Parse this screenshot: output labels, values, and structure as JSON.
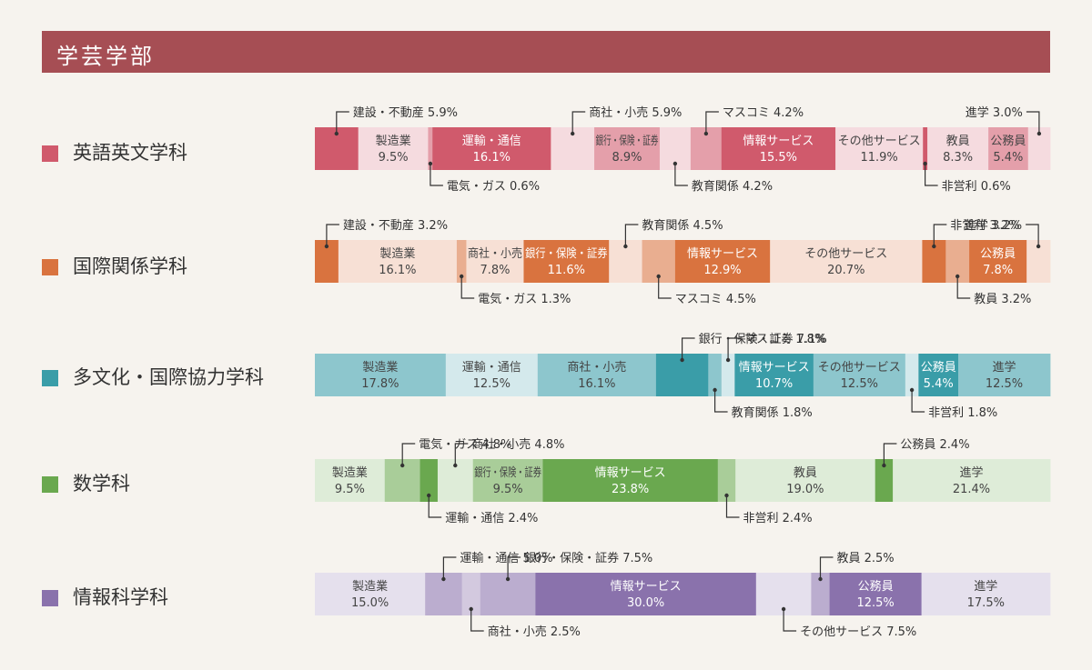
{
  "page_title": "学芸学部",
  "chart_data": [
    {
      "type": "bar",
      "dept": "英語英文学科",
      "color": "#d05a6c",
      "segments": [
        {
          "name": "建設・不動産",
          "value": 5.9,
          "shade": 0,
          "label": "out"
        },
        {
          "name": "製造業",
          "value": 9.5,
          "shade": 2,
          "label": "in"
        },
        {
          "name": "電気・ガス",
          "value": 0.6,
          "shade": 1,
          "label": "out"
        },
        {
          "name": "運輸・通信",
          "value": 16.1,
          "shade": 0,
          "label": "in"
        },
        {
          "name": "商社・小売",
          "value": 5.9,
          "shade": 2,
          "label": "out"
        },
        {
          "name": "銀行・保険・証券",
          "value": 8.9,
          "shade": 1,
          "label": "in"
        },
        {
          "name": "教育関係",
          "value": 4.2,
          "shade": 2,
          "label": "out"
        },
        {
          "name": "マスコミ",
          "value": 4.2,
          "shade": 1,
          "label": "out"
        },
        {
          "name": "情報サービス",
          "value": 15.5,
          "shade": 0,
          "label": "in"
        },
        {
          "name": "その他サービス",
          "value": 11.9,
          "shade": 2,
          "label": "in"
        },
        {
          "name": "非営利",
          "value": 0.6,
          "shade": 0,
          "label": "out"
        },
        {
          "name": "教員",
          "value": 8.3,
          "shade": 2,
          "label": "in"
        },
        {
          "name": "公務員",
          "value": 5.4,
          "shade": 1,
          "label": "in"
        },
        {
          "name": "進学",
          "value": 3.0,
          "shade": 2,
          "label": "out"
        }
      ]
    },
    {
      "type": "bar",
      "dept": "国際関係学科",
      "color": "#d9733f",
      "segments": [
        {
          "name": "建設・不動産",
          "value": 3.2,
          "shade": 0,
          "label": "out"
        },
        {
          "name": "製造業",
          "value": 16.1,
          "shade": 2,
          "label": "in"
        },
        {
          "name": "電気・ガス",
          "value": 1.3,
          "shade": 1,
          "label": "out"
        },
        {
          "name": "商社・小売",
          "value": 7.8,
          "shade": 2,
          "label": "in"
        },
        {
          "name": "銀行・保険・証券",
          "value": 11.6,
          "shade": 0,
          "label": "in"
        },
        {
          "name": "教育関係",
          "value": 4.5,
          "shade": 2,
          "label": "out"
        },
        {
          "name": "マスコミ",
          "value": 4.5,
          "shade": 1,
          "label": "out"
        },
        {
          "name": "情報サービス",
          "value": 12.9,
          "shade": 0,
          "label": "in"
        },
        {
          "name": "その他サービス",
          "value": 20.7,
          "shade": 2,
          "label": "in"
        },
        {
          "name": "非営利",
          "value": 3.2,
          "shade": 0,
          "label": "out"
        },
        {
          "name": "教員",
          "value": 3.2,
          "shade": 1,
          "label": "out"
        },
        {
          "name": "公務員",
          "value": 7.8,
          "shade": 0,
          "label": "in"
        },
        {
          "name": "進学",
          "value": 3.2,
          "shade": 2,
          "label": "out"
        }
      ]
    },
    {
      "type": "bar",
      "dept": "多文化・国際協力学科",
      "color": "#3a9da8",
      "segments": [
        {
          "name": "製造業",
          "value": 17.8,
          "shade": 1,
          "label": "in"
        },
        {
          "name": "運輸・通信",
          "value": 12.5,
          "shade": 2,
          "label": "in"
        },
        {
          "name": "商社・小売",
          "value": 16.1,
          "shade": 1,
          "label": "in"
        },
        {
          "name": "銀行・保険・証券",
          "value": 7.1,
          "shade": 0,
          "label": "out"
        },
        {
          "name": "教育関係",
          "value": 1.8,
          "shade": 1,
          "label": "out"
        },
        {
          "name": "マスコミ",
          "value": 1.8,
          "shade": 2,
          "label": "out"
        },
        {
          "name": "情報サービス",
          "value": 10.7,
          "shade": 0,
          "label": "in"
        },
        {
          "name": "その他サービス",
          "value": 12.5,
          "shade": 1,
          "label": "in"
        },
        {
          "name": "非営利",
          "value": 1.8,
          "shade": 2,
          "label": "out"
        },
        {
          "name": "公務員",
          "value": 5.4,
          "shade": 0,
          "label": "in"
        },
        {
          "name": "進学",
          "value": 12.5,
          "shade": 1,
          "label": "in"
        }
      ]
    },
    {
      "type": "bar",
      "dept": "数学科",
      "color": "#6aa84f",
      "segments": [
        {
          "name": "製造業",
          "value": 9.5,
          "shade": 2,
          "label": "in"
        },
        {
          "name": "電気・ガス",
          "value": 4.8,
          "shade": 1,
          "label": "out"
        },
        {
          "name": "運輸・通信",
          "value": 2.4,
          "shade": 0,
          "label": "out"
        },
        {
          "name": "商社・小売",
          "value": 4.8,
          "shade": 2,
          "label": "out"
        },
        {
          "name": "銀行・保険・証券",
          "value": 9.5,
          "shade": 1,
          "label": "in"
        },
        {
          "name": "情報サービス",
          "value": 23.8,
          "shade": 0,
          "label": "in"
        },
        {
          "name": "非営利",
          "value": 2.4,
          "shade": 1,
          "label": "out"
        },
        {
          "name": "教員",
          "value": 19.0,
          "shade": 2,
          "label": "in"
        },
        {
          "name": "公務員",
          "value": 2.4,
          "shade": 0,
          "label": "out"
        },
        {
          "name": "進学",
          "value": 21.4,
          "shade": 2,
          "label": "in"
        }
      ]
    },
    {
      "type": "bar",
      "dept": "情報科学科",
      "color": "#8a72ac",
      "segments": [
        {
          "name": "製造業",
          "value": 15.0,
          "shade": 2,
          "label": "in"
        },
        {
          "name": "運輸・通信",
          "value": 5.0,
          "shade": 1,
          "label": "out"
        },
        {
          "name": "商社・小売",
          "value": 2.5,
          "shade": 3,
          "label": "out"
        },
        {
          "name": "銀行・保険・証券",
          "value": 7.5,
          "shade": 1,
          "label": "out"
        },
        {
          "name": "情報サービス",
          "value": 30.0,
          "shade": 0,
          "label": "in"
        },
        {
          "name": "その他サービス",
          "value": 7.5,
          "shade": 2,
          "label": "out"
        },
        {
          "name": "教員",
          "value": 2.5,
          "shade": 1,
          "label": "out"
        },
        {
          "name": "公務員",
          "value": 12.5,
          "shade": 0,
          "label": "in"
        },
        {
          "name": "進学",
          "value": 17.5,
          "shade": 2,
          "label": "in"
        }
      ]
    }
  ]
}
